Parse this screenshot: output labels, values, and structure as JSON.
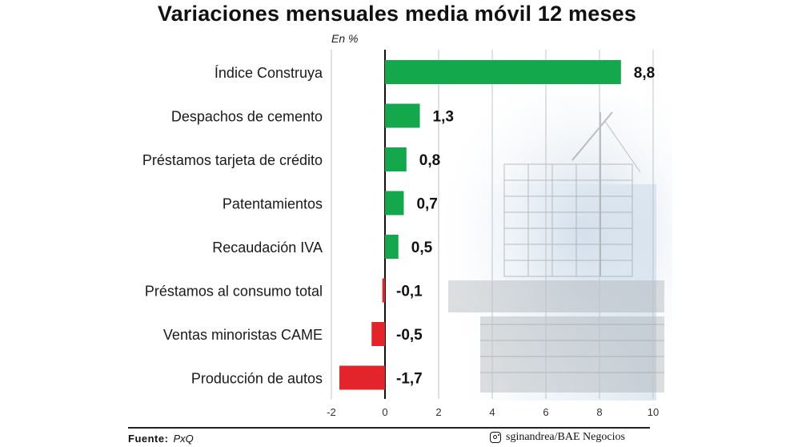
{
  "chart_data": {
    "type": "bar",
    "orientation": "horizontal",
    "title": "Variaciones mensuales media móvil 12 meses",
    "unit_label": "En %",
    "categories": [
      "Índice Construya",
      "Despachos de cemento",
      "Préstamos tarjeta de crédito",
      "Patentamientos",
      "Recaudación IVA",
      "Préstamos al consumo total",
      "Ventas minoristas CAME",
      "Producción de autos"
    ],
    "values": [
      8.8,
      1.3,
      0.8,
      0.7,
      0.5,
      -0.1,
      -0.5,
      -1.7
    ],
    "value_labels": [
      "8,8",
      "1,3",
      "0,8",
      "0,7",
      "0,5",
      "-0,1",
      "-0,5",
      "-1,7"
    ],
    "xlim": [
      -2,
      10
    ],
    "xticks": [
      -2,
      0,
      2,
      4,
      6,
      8,
      10
    ],
    "xtick_labels": [
      "-2",
      "0",
      "2",
      "4",
      "6",
      "8",
      "10"
    ],
    "grid": "vertical",
    "colors": {
      "positive": "#12a84b",
      "negative": "#e3242b"
    }
  },
  "footer": {
    "source_label": "Fuente:",
    "source_value": "PxQ",
    "credit": "sginandrea/BAE Negocios",
    "credit_icon": "instagram-icon"
  }
}
